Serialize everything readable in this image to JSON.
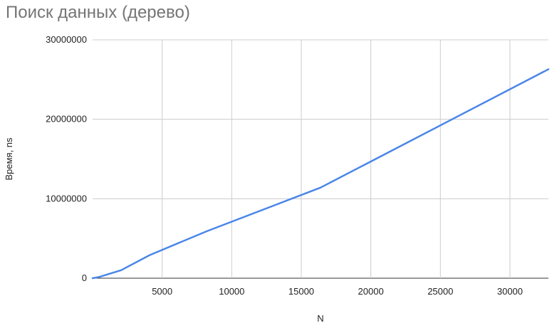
{
  "chart_data": {
    "type": "line",
    "title": "Поиск данных (дерево)",
    "xlabel": "N",
    "ylabel": "Время, ns",
    "xlim": [
      0,
      32768
    ],
    "ylim": [
      0,
      30000000
    ],
    "x_ticks": [
      5000,
      10000,
      15000,
      20000,
      25000,
      30000
    ],
    "x_tick_labels": [
      "5000",
      "10000",
      "15000",
      "20000",
      "25000",
      "30000"
    ],
    "y_ticks": [
      0,
      10000000,
      20000000,
      30000000
    ],
    "y_tick_labels": [
      "0",
      "10000000",
      "20000000",
      "30000000"
    ],
    "grid": true,
    "legend": "none",
    "series": [
      {
        "color": "#4a86e8",
        "x": [
          0,
          256,
          512,
          1024,
          2048,
          4096,
          8192,
          16384,
          32768
        ],
        "y": [
          0,
          80000,
          170000,
          450000,
          1000000,
          2900000,
          5900000,
          11400000,
          26300000
        ]
      }
    ]
  }
}
